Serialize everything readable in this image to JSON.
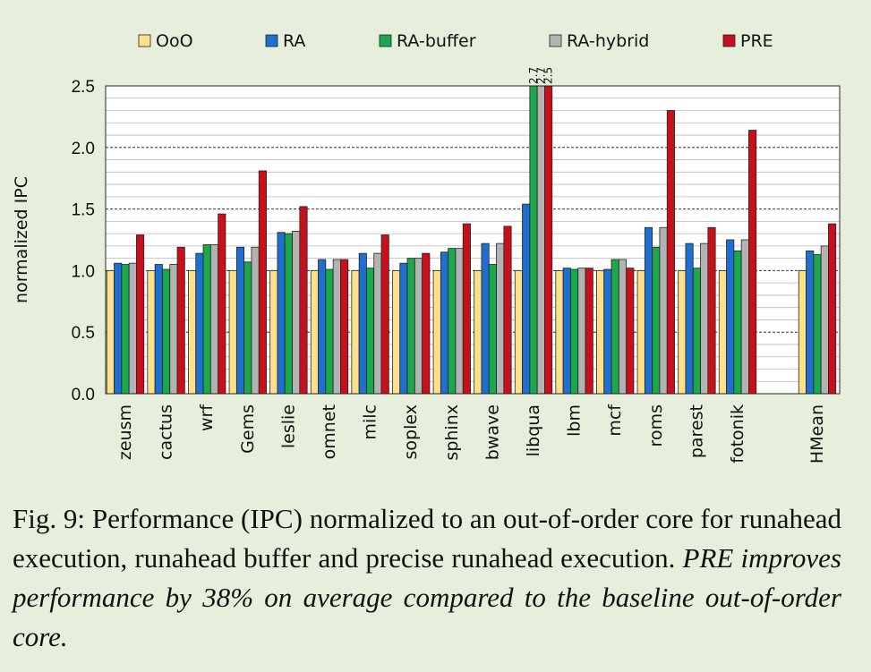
{
  "chart_data": {
    "type": "bar",
    "ylabel": "normalized IPC",
    "xlabel": "",
    "ylim": [
      0,
      2.5
    ],
    "yticks": [
      "0.0",
      "0.5",
      "1.0",
      "1.5",
      "2.0",
      "2.5"
    ],
    "grid": true,
    "legend_position": "top",
    "categories": [
      "zeusm",
      "cactus",
      "wrf",
      "Gems",
      "leslie",
      "omnet",
      "milc",
      "soplex",
      "sphinx",
      "bwave",
      "libqua",
      "lbm",
      "mcf",
      "roms",
      "parest",
      "fotonik",
      "HMean"
    ],
    "series": [
      {
        "name": "OoO",
        "color": "#ffe08a",
        "values": [
          1.0,
          1.0,
          1.0,
          1.0,
          1.0,
          1.0,
          1.0,
          1.0,
          1.0,
          1.0,
          1.0,
          1.0,
          1.0,
          1.0,
          1.0,
          1.0,
          1.0
        ]
      },
      {
        "name": "RA",
        "color": "#1f6fd1",
        "values": [
          1.06,
          1.05,
          1.14,
          1.19,
          1.31,
          1.09,
          1.14,
          1.06,
          1.15,
          1.22,
          1.54,
          1.02,
          1.01,
          1.35,
          1.22,
          1.25,
          1.16
        ]
      },
      {
        "name": "RA-buffer",
        "color": "#1aa84a",
        "values": [
          1.05,
          1.01,
          1.21,
          1.07,
          1.3,
          1.01,
          1.02,
          1.1,
          1.18,
          1.05,
          2.7,
          1.01,
          1.09,
          1.19,
          1.02,
          1.16,
          1.13
        ]
      },
      {
        "name": "RA-hybrid",
        "color": "#b3b3b3",
        "values": [
          1.06,
          1.05,
          1.21,
          1.19,
          1.32,
          1.09,
          1.14,
          1.1,
          1.18,
          1.22,
          2.7,
          1.02,
          1.09,
          1.35,
          1.22,
          1.25,
          1.2
        ]
      },
      {
        "name": "PRE",
        "color": "#c8101c",
        "values": [
          1.29,
          1.19,
          1.46,
          1.81,
          1.52,
          1.09,
          1.29,
          1.14,
          1.38,
          1.36,
          2.5,
          1.02,
          1.02,
          2.3,
          1.35,
          2.14,
          1.38
        ]
      }
    ],
    "annotations": [
      {
        "category": "libqua",
        "series": "RA-hybrid",
        "text": "2.7"
      },
      {
        "category": "libqua",
        "series": "RA-buffer",
        "text": "2.7"
      },
      {
        "category": "libqua",
        "series": "PRE",
        "text": "2.5"
      }
    ]
  },
  "caption": {
    "prefix": "Fig. 9: Performance (IPC) normalized to an out-of-order core for runahead execution, runahead buffer and precise runahead execution. ",
    "emphasis": "PRE improves performance by 38% on average compared to the baseline out-of-order core."
  },
  "colors": {
    "background": "#e6eedc",
    "plot_background": "#ffffff"
  }
}
